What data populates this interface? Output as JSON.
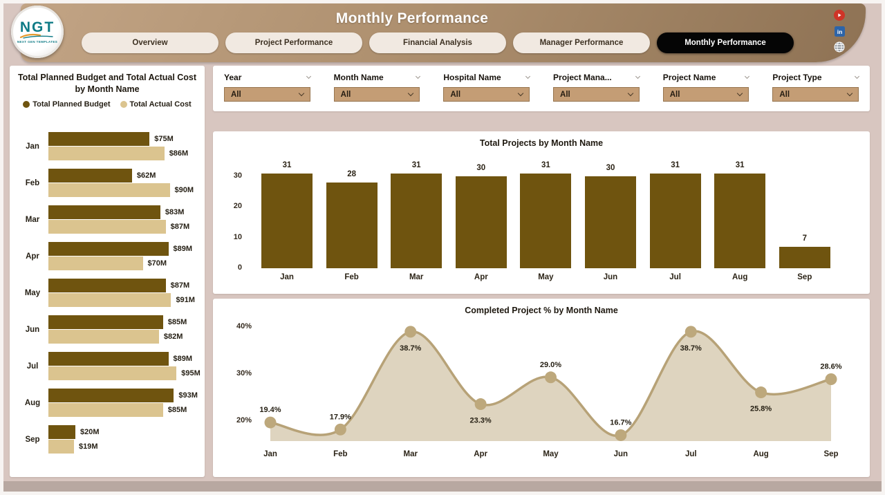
{
  "header": {
    "title": "Monthly Performance",
    "logo": {
      "text": "NGT",
      "subtext": "NEXT GEN TEMPLATES"
    },
    "tabs": [
      {
        "label": "Overview",
        "active": false
      },
      {
        "label": "Project Performance",
        "active": false
      },
      {
        "label": "Financial Analysis",
        "active": false
      },
      {
        "label": "Manager Performance",
        "active": false
      },
      {
        "label": "Monthly Performance",
        "active": true
      }
    ],
    "social_icons": [
      "youtube-icon",
      "linkedin-icon",
      "globe-icon"
    ]
  },
  "filters": {
    "items": [
      {
        "label": "Year",
        "value": "All"
      },
      {
        "label": "Month Name",
        "value": "All"
      },
      {
        "label": "Hospital Name",
        "value": "All"
      },
      {
        "label": "Project Mana...",
        "value": "All"
      },
      {
        "label": "Project Name",
        "value": "All"
      },
      {
        "label": "Project Type",
        "value": "All"
      }
    ]
  },
  "colors": {
    "dark_bar": "#6f540f",
    "tan_bar": "#dbc48f",
    "line": "#b7a277",
    "marker": "#bda87c",
    "area_fill": "#ded4bf",
    "canvas_bg": "#d8c6c0",
    "accent_dropdown": "#c49d75"
  },
  "chart_data": [
    {
      "id": "budget-cost-by-month",
      "type": "bar",
      "orientation": "horizontal",
      "title": "Total Planned Budget and Total Actual Cost by Month Name",
      "categories": [
        "Jan",
        "Feb",
        "Mar",
        "Apr",
        "May",
        "Jun",
        "Jul",
        "Aug",
        "Sep"
      ],
      "series": [
        {
          "name": "Total Planned Budget",
          "color": "#6f540f",
          "values": [
            75,
            62,
            83,
            89,
            87,
            85,
            89,
            93,
            20
          ],
          "labels": [
            "$75M",
            "$62M",
            "$83M",
            "$89M",
            "$87M",
            "$85M",
            "$89M",
            "$93M",
            "$20M"
          ]
        },
        {
          "name": "Total Actual Cost",
          "color": "#dbc48f",
          "values": [
            86,
            90,
            87,
            70,
            91,
            82,
            95,
            85,
            19
          ],
          "labels": [
            "$86M",
            "$90M",
            "$87M",
            "$70M",
            "$91M",
            "$82M",
            "$95M",
            "$85M",
            "$19M"
          ]
        }
      ],
      "xlim": [
        0,
        100
      ],
      "value_unit": "$M"
    },
    {
      "id": "total-projects-by-month",
      "type": "bar",
      "title": "Total Projects by Month Name",
      "categories": [
        "Jan",
        "Feb",
        "Mar",
        "Apr",
        "May",
        "Jun",
        "Jul",
        "Aug",
        "Sep"
      ],
      "values": [
        31,
        28,
        31,
        30,
        31,
        30,
        31,
        31,
        7
      ],
      "ylim": [
        0,
        33
      ],
      "yticks": [
        0,
        10,
        20,
        30
      ],
      "bar_color": "#6f540f",
      "grid": false,
      "data_labels": true
    },
    {
      "id": "completed-project-pct-by-month",
      "type": "area",
      "title": "Completed Project % by Month Name",
      "categories": [
        "Jan",
        "Feb",
        "Mar",
        "Apr",
        "May",
        "Jun",
        "Jul",
        "Aug",
        "Sep"
      ],
      "values": [
        19.4,
        17.9,
        38.7,
        23.3,
        29.0,
        16.7,
        38.7,
        25.8,
        28.6
      ],
      "labels": [
        "19.4%",
        "17.9%",
        "38.7%",
        "23.3%",
        "29.0%",
        "16.7%",
        "38.7%",
        "25.8%",
        "28.6%"
      ],
      "label_position": [
        "above",
        "above",
        "below",
        "below",
        "above",
        "above",
        "below",
        "below",
        "above"
      ],
      "yticks": [
        "20%",
        "30%",
        "40%"
      ],
      "ytick_values": [
        20,
        30,
        40
      ],
      "ylim": [
        15,
        42
      ],
      "grid": false,
      "smooth": true
    }
  ]
}
